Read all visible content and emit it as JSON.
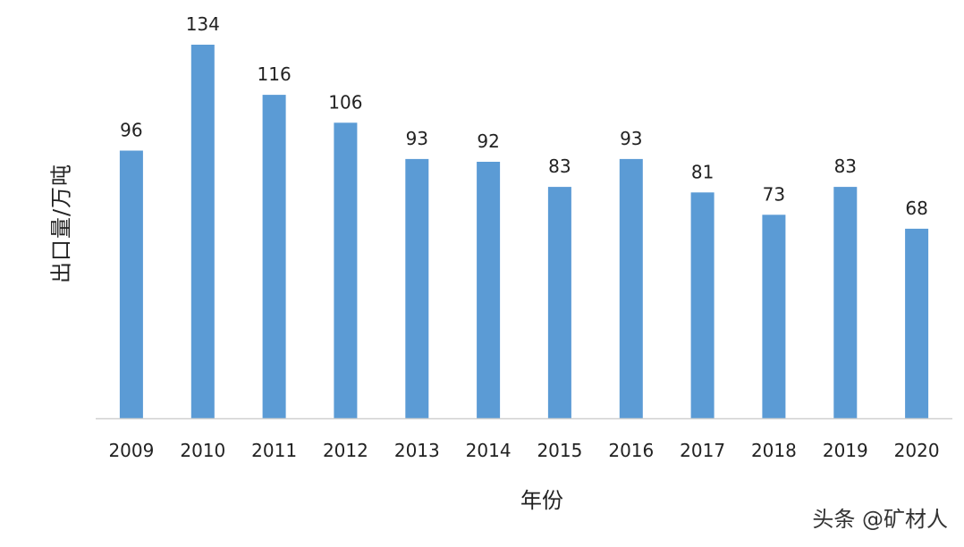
{
  "chart_data": {
    "type": "bar",
    "title": "",
    "xlabel": "年份",
    "ylabel": "出口量/万吨",
    "categories": [
      "2009",
      "2010",
      "2011",
      "2012",
      "2013",
      "2014",
      "2015",
      "2016",
      "2017",
      "2018",
      "2019",
      "2020"
    ],
    "values": [
      96,
      134,
      116,
      106,
      93,
      92,
      83,
      93,
      81,
      73,
      83,
      68
    ],
    "ylim": [
      0,
      134
    ],
    "grid": false,
    "legend": "none",
    "bar_color": "#5b9bd5",
    "data_labels": true
  },
  "watermark": "头条 @矿材人"
}
